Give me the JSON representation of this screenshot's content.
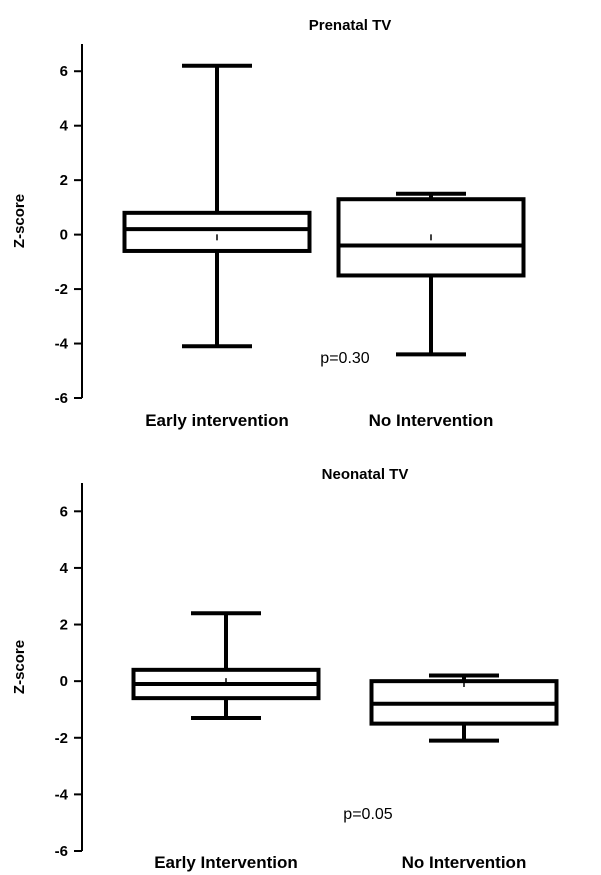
{
  "chart_data": [
    {
      "type": "box",
      "title": "Prenatal TV",
      "ylabel": "Z-score",
      "xlabel": "",
      "ylim": [
        -6,
        7
      ],
      "yticks": [
        -6,
        -4,
        -2,
        0,
        2,
        4,
        6
      ],
      "categories": [
        "Early intervention",
        "No Intervention"
      ],
      "boxes": [
        {
          "min": -4.1,
          "q1": -0.6,
          "median": 0.2,
          "q3": 0.8,
          "max": 6.2,
          "mean": -0.1
        },
        {
          "min": -4.4,
          "q1": -1.5,
          "median": -0.4,
          "q3": 1.3,
          "max": 1.5,
          "mean": -0.1
        }
      ],
      "annotation": "p=0.30"
    },
    {
      "type": "box",
      "title": "Neonatal TV",
      "ylabel": "Z-score",
      "xlabel": "",
      "ylim": [
        -6,
        7
      ],
      "yticks": [
        -6,
        -4,
        -2,
        0,
        2,
        4,
        6
      ],
      "categories": [
        "Early Intervention",
        "No Intervention"
      ],
      "boxes": [
        {
          "min": -1.3,
          "q1": -0.6,
          "median": -0.1,
          "q3": 0.4,
          "max": 2.4,
          "mean": 0.0
        },
        {
          "min": -2.1,
          "q1": -1.5,
          "median": -0.8,
          "q3": 0.0,
          "max": 0.2,
          "mean": -0.1
        }
      ],
      "annotation": "p=0.05"
    }
  ]
}
